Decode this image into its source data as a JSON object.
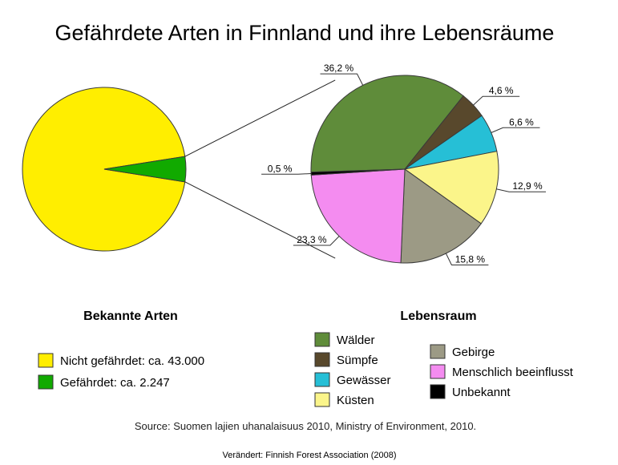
{
  "title": "Gefährdete Arten in Finnland und ihre Lebensräume",
  "source": "Source: Suomen lajien uhanalaisuus 2010, Ministry of Environment, 2010.",
  "footer": "Verändert: Finnish Forest Association (2008)",
  "colors": {
    "nicht_gefaehrdet": "#ffee00",
    "gefaehrdet": "#11aa00",
    "waelder": "#5f8c3a",
    "suempfe": "#58482c",
    "gewaesser": "#26bfd6",
    "kuesten": "#fbf58a",
    "gebirge": "#9c9a85",
    "menschlich": "#f48cf0",
    "unbekannt": "#000000"
  },
  "chart_data": [
    {
      "type": "pie",
      "legend_title": "Bekannte Arten",
      "slices": [
        {
          "label": "Nicht gefährdet: ca. 43.000",
          "value": 43000,
          "color_key": "nicht_gefaehrdet"
        },
        {
          "label": "Gefährdet: ca. 2.247",
          "value": 2247,
          "color_key": "gefaehrdet"
        }
      ]
    },
    {
      "type": "pie",
      "legend_title": "Lebensraum",
      "slices": [
        {
          "label": "Wälder",
          "value": 36.2,
          "text": "36,2 %",
          "color_key": "waelder"
        },
        {
          "label": "Sümpfe",
          "value": 4.6,
          "text": "4,6 %",
          "color_key": "suempfe"
        },
        {
          "label": "Gewässer",
          "value": 6.6,
          "text": "6,6 %",
          "color_key": "gewaesser"
        },
        {
          "label": "Küsten",
          "value": 12.9,
          "text": "12,9 %",
          "color_key": "kuesten"
        },
        {
          "label": "Gebirge",
          "value": 15.8,
          "text": "15,8 %",
          "color_key": "gebirge"
        },
        {
          "label": "Menschlich beeinflusst",
          "value": 23.3,
          "text": "23,3 %",
          "color_key": "menschlich"
        },
        {
          "label": "Unbekannt",
          "value": 0.5,
          "text": "0,5 %",
          "color_key": "unbekannt"
        }
      ]
    }
  ]
}
